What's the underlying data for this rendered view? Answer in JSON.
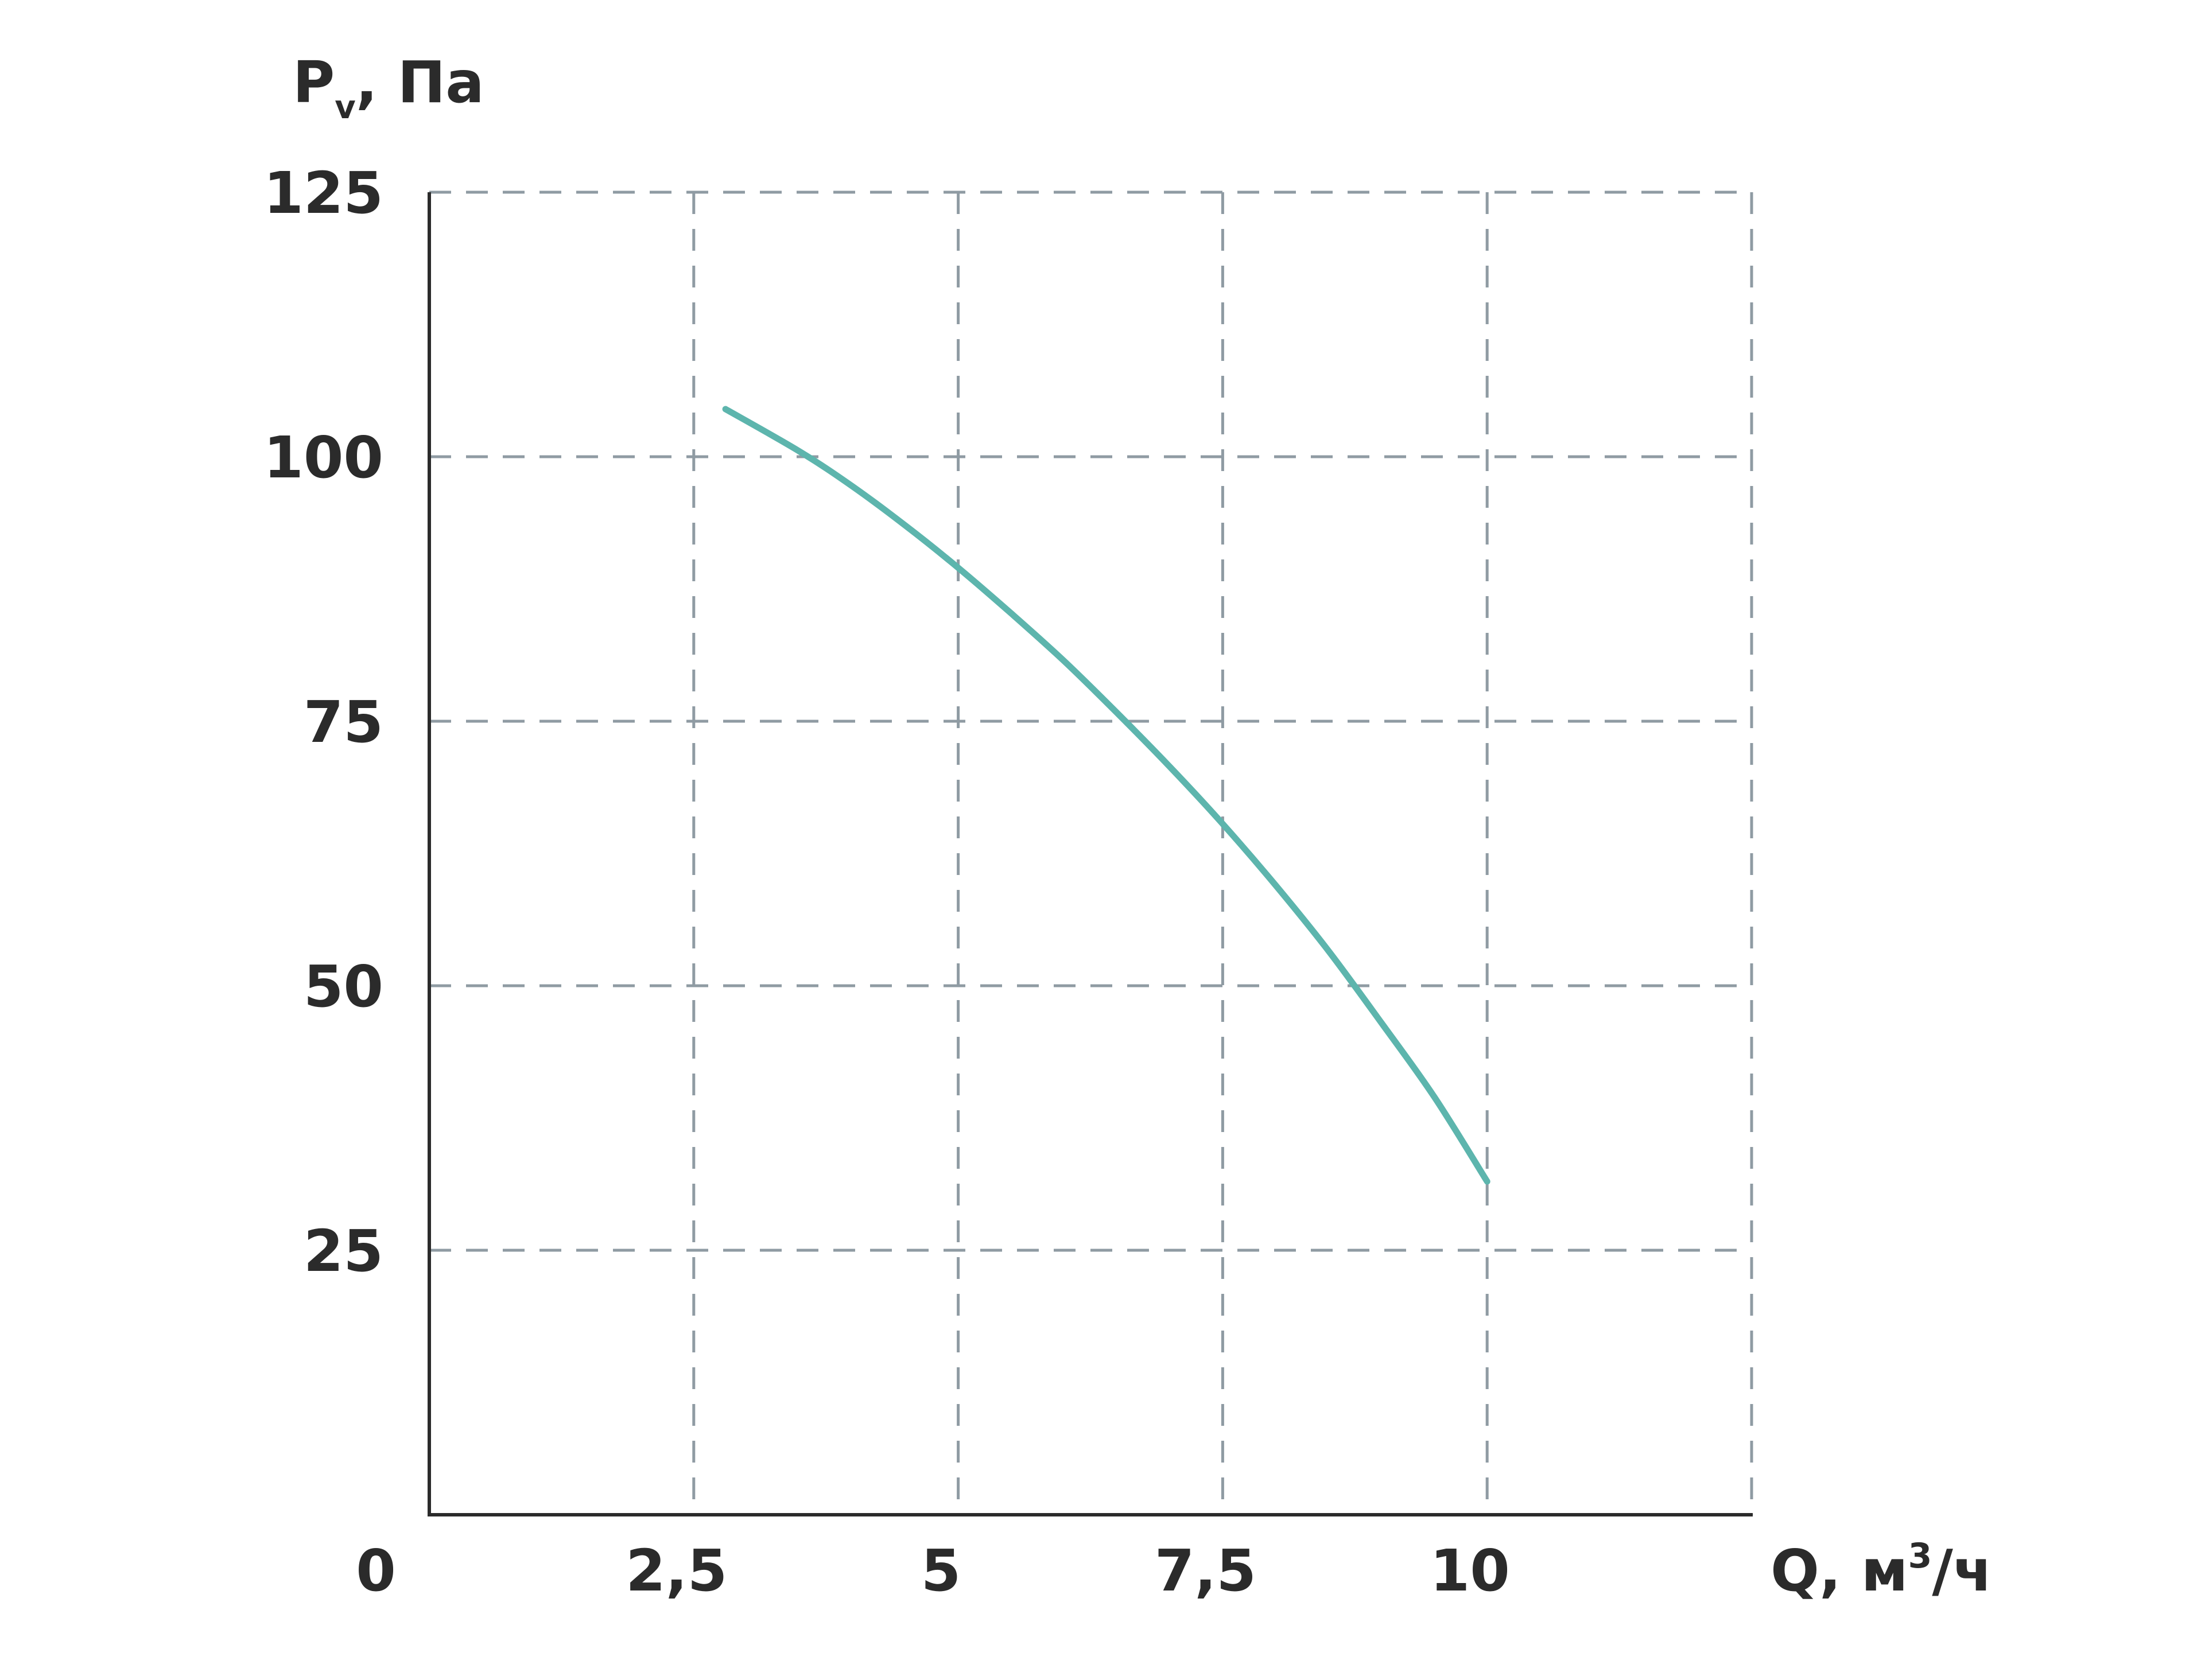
{
  "chart_data": {
    "type": "line",
    "ylabel": {
      "main": "P",
      "sub": "v",
      "rest": ", Па"
    },
    "xlabel": {
      "main": "Q, м",
      "sup": "3",
      "rest": "/ч"
    },
    "xlim": [
      0,
      12.5
    ],
    "ylim": [
      0,
      125
    ],
    "x_ticks": [
      {
        "value": 0,
        "label": "0"
      },
      {
        "value": 2.5,
        "label": "2,5"
      },
      {
        "value": 5,
        "label": "5"
      },
      {
        "value": 7.5,
        "label": "7,5"
      },
      {
        "value": 10,
        "label": "10"
      }
    ],
    "y_ticks": [
      {
        "value": 25,
        "label": "25"
      },
      {
        "value": 50,
        "label": "50"
      },
      {
        "value": 75,
        "label": "75"
      },
      {
        "value": 100,
        "label": "100"
      },
      {
        "value": 125,
        "label": "125"
      }
    ],
    "x_grid": [
      2.5,
      5,
      7.5,
      10,
      12.5
    ],
    "y_grid": [
      25,
      50,
      75,
      100,
      125
    ],
    "grid": true,
    "series": [
      {
        "color": "#5db5ad",
        "x": [
          2.8,
          3.5,
          4.0,
          4.5,
          5.0,
          5.5,
          6.0,
          6.5,
          7.0,
          7.5,
          8.0,
          8.5,
          9.0,
          9.5,
          10.0
        ],
        "y": [
          104.5,
          100.5,
          97.2,
          93.5,
          89.5,
          85.2,
          80.7,
          75.8,
          70.7,
          65.3,
          59.5,
          53.3,
          46.5,
          39.5,
          31.5
        ]
      }
    ]
  }
}
